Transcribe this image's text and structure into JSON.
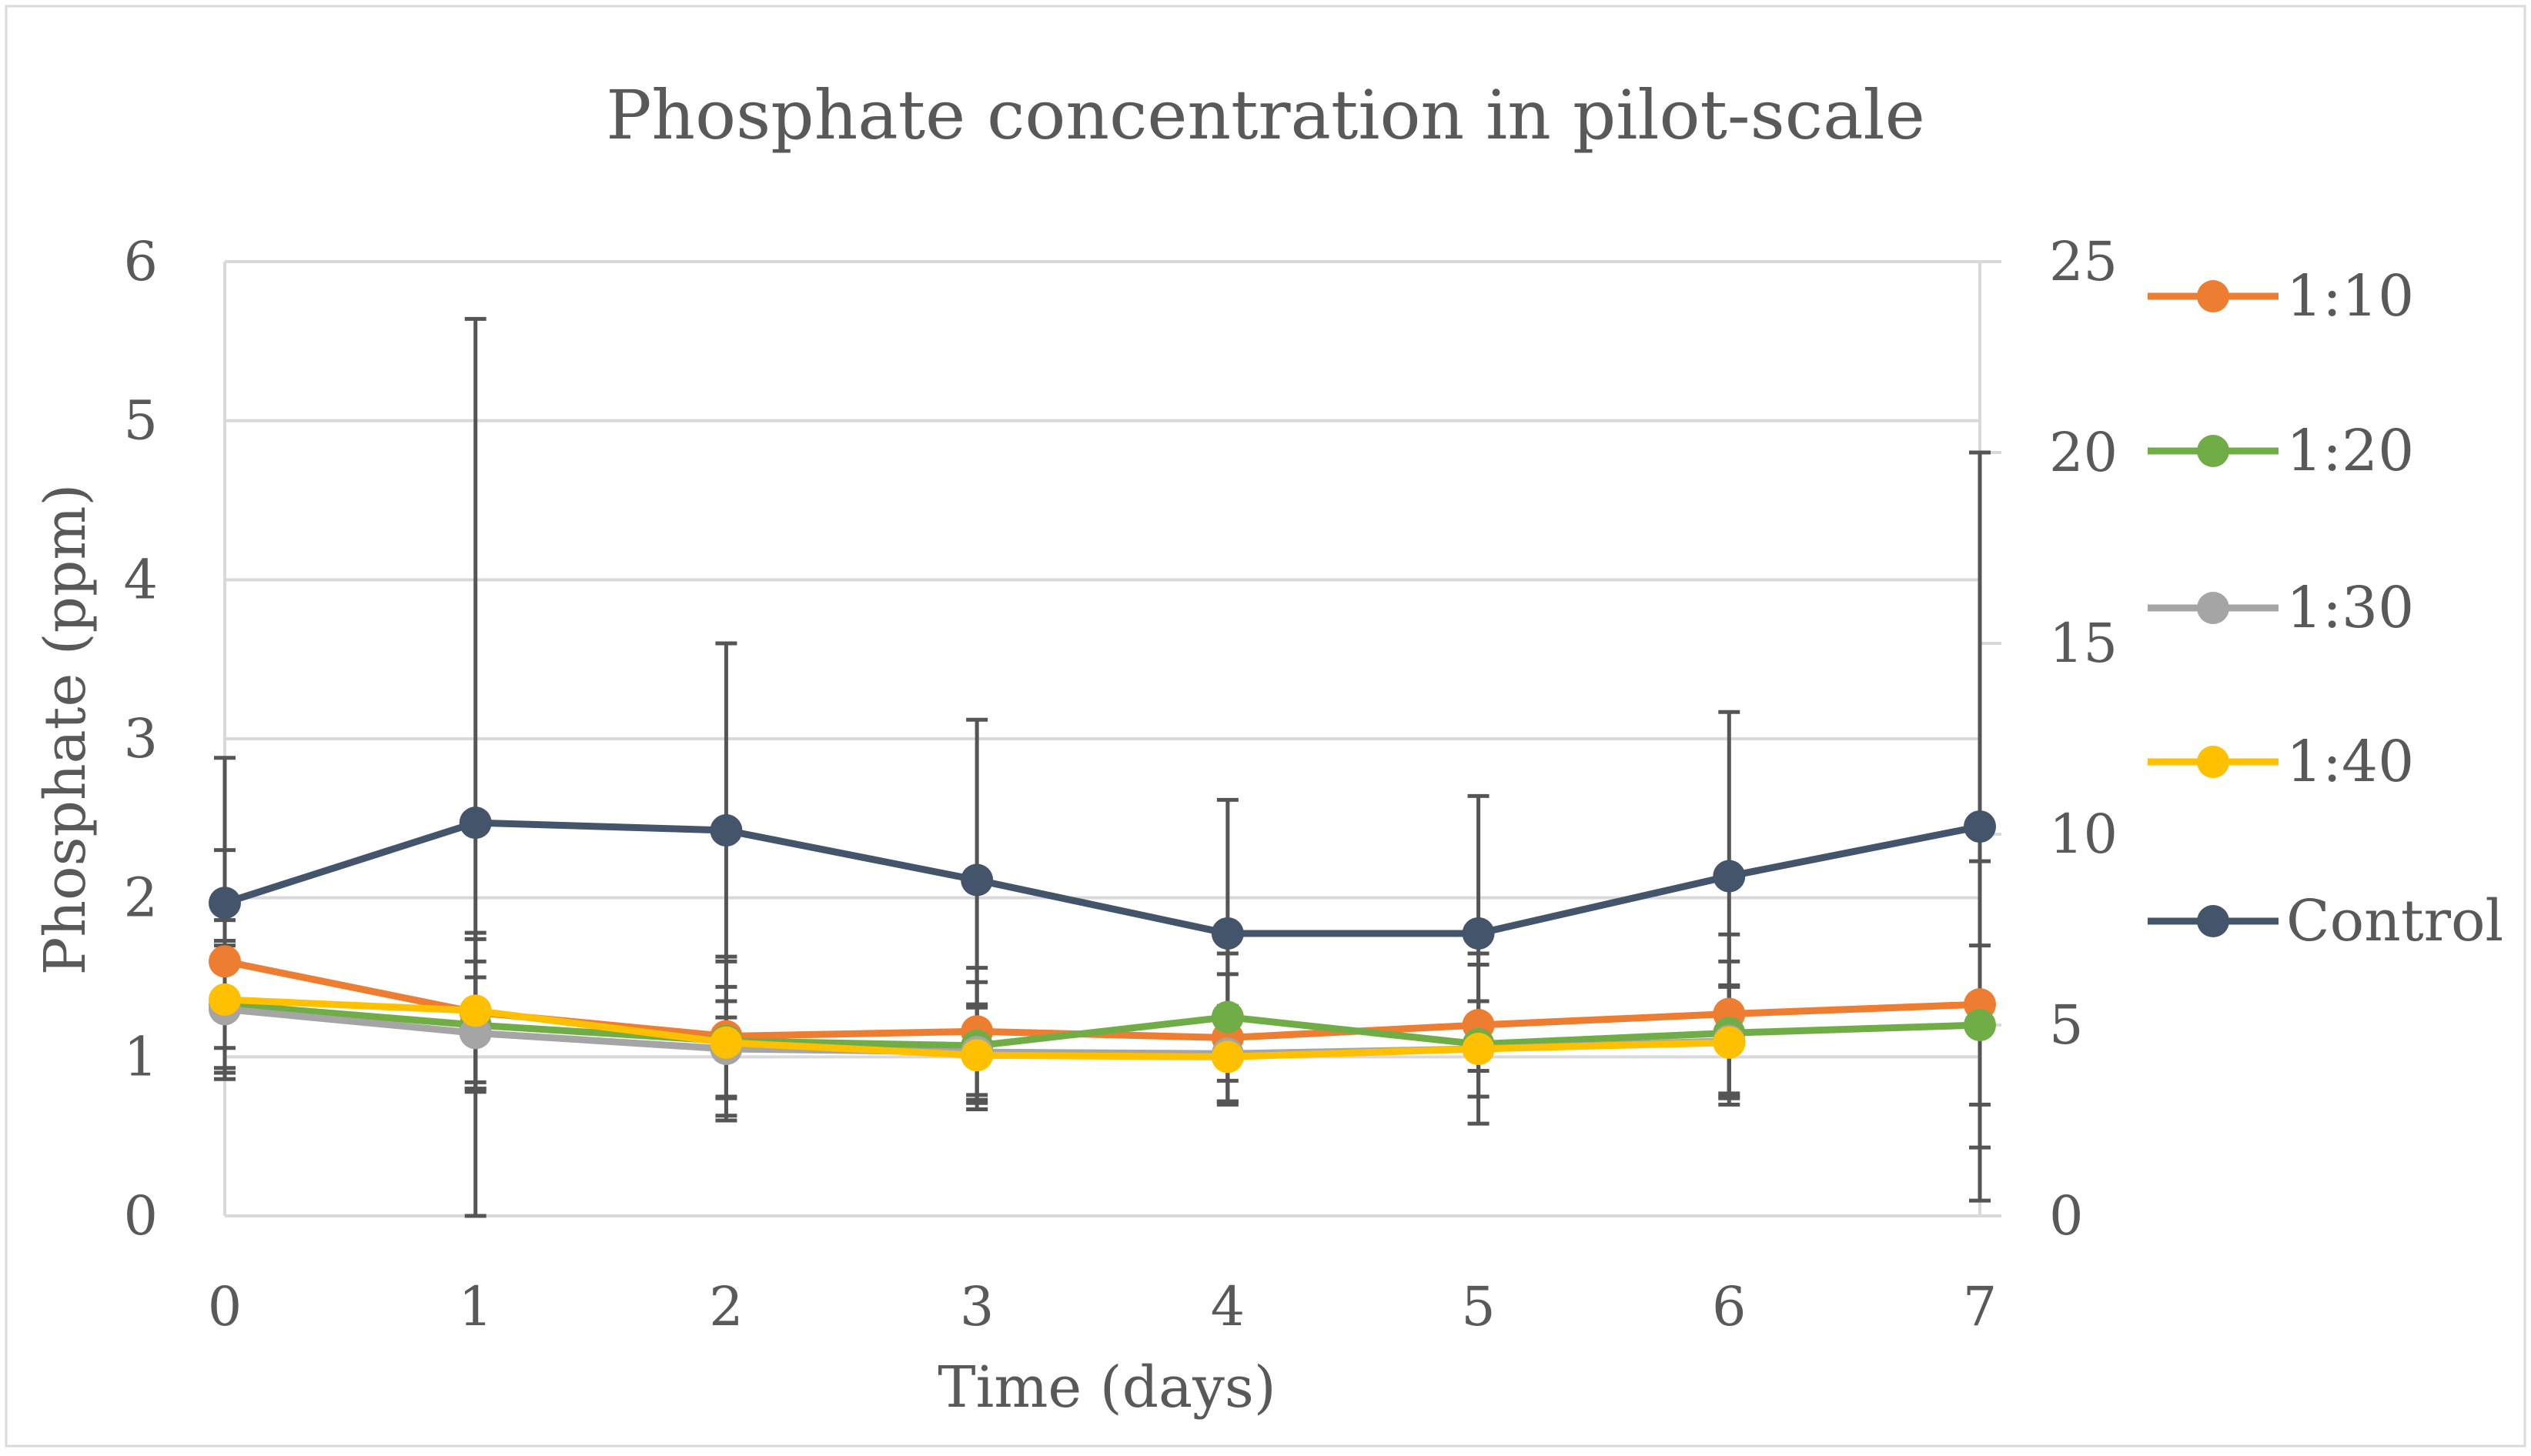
{
  "chart_data": {
    "type": "line",
    "title": "Phosphate concentration in pilot-scale",
    "xlabel": "Time (days)",
    "ylabel": "Phosphate  (ppm)",
    "x": [
      0,
      1,
      2,
      3,
      4,
      5,
      6,
      7
    ],
    "xlim": [
      0,
      7
    ],
    "ylim": [
      0,
      6
    ],
    "y_ticks": [
      0,
      1,
      2,
      3,
      4,
      5,
      6
    ],
    "y2lim": [
      0,
      25
    ],
    "y2_ticks": [
      0,
      5,
      10,
      15,
      20,
      25
    ],
    "grid": true,
    "legend_position": "right",
    "series": [
      {
        "name": "1:10",
        "color": "#ED7D31",
        "axis": "left",
        "values": [
          1.6,
          1.28,
          1.13,
          1.16,
          1.12,
          1.2,
          1.27,
          1.33
        ],
        "error": [
          0.7,
          0.5,
          0.5,
          0.4,
          0.4,
          0.45,
          0.5,
          0.9
        ]
      },
      {
        "name": "1:20",
        "color": "#70AD47",
        "axis": "left",
        "values": [
          1.33,
          1.2,
          1.1,
          1.07,
          1.25,
          1.08,
          1.15,
          1.2
        ],
        "error": [
          0.4,
          0.4,
          0.5,
          0.4,
          0.4,
          0.5,
          0.45,
          0.5
        ]
      },
      {
        "name": "1:30",
        "color": "#A5A5A5",
        "axis": "left",
        "values": [
          1.3,
          1.15,
          1.05,
          1.03,
          1.02,
          1.05,
          1.1,
          null
        ],
        "error": [
          0.4,
          0.35,
          0.3,
          0.3,
          0.3,
          0.3,
          0.35,
          null
        ]
      },
      {
        "name": "1:40",
        "color": "#FFC000",
        "axis": "left",
        "values": [
          1.36,
          1.29,
          1.09,
          1.01,
          1.0,
          1.05,
          1.09,
          null
        ],
        "error": [
          0.5,
          0.45,
          0.35,
          0.3,
          0.3,
          0.3,
          0.35,
          null
        ]
      },
      {
        "name": "Control",
        "color": "#44546A",
        "axis": "right",
        "values": [
          8.2,
          10.3,
          10.1,
          8.8,
          7.4,
          7.4,
          8.9,
          10.2
        ],
        "error": [
          3.8,
          13.2,
          4.9,
          4.2,
          3.5,
          3.6,
          4.3,
          9.8
        ]
      }
    ]
  }
}
